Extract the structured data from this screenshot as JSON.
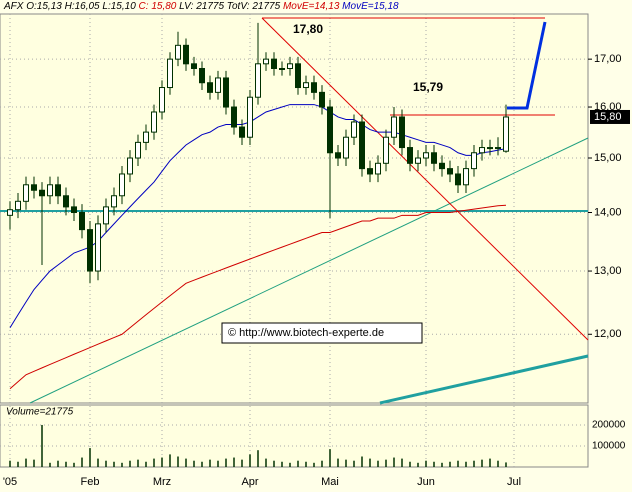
{
  "header": {
    "symbol": "AFX",
    "ohlc": "O:15,13 H:16,05 L:15,10",
    "close": "C: 15,80",
    "volume": "LV: 21775 TotV: 21775",
    "ma1": "MovE=14,13",
    "ma2": "MovE=15,18"
  },
  "annotations": {
    "high_label": "17,80",
    "mid_label": "15,79",
    "copyright": "© http://www.biotech-experte.de"
  },
  "chart_data": {
    "type": "candlestick",
    "log_scale": true,
    "grid": true,
    "categories": [
      "'05",
      null,
      null,
      null,
      null,
      null,
      null,
      null,
      null,
      null,
      "Feb",
      null,
      null,
      null,
      null,
      null,
      null,
      null,
      null,
      "Mrz",
      null,
      null,
      null,
      null,
      null,
      null,
      null,
      null,
      null,
      null,
      "Apr",
      null,
      null,
      null,
      null,
      null,
      null,
      null,
      null,
      null,
      "Mai",
      null,
      null,
      null,
      null,
      null,
      null,
      null,
      null,
      null,
      null,
      null,
      "Jun",
      null,
      null,
      null,
      null,
      null,
      null,
      null,
      null,
      null,
      null,
      "Jul",
      null,
      null,
      null,
      null,
      null,
      null,
      null,
      null,
      null
    ],
    "open": [
      13.95,
      14.05,
      14.2,
      14.5,
      14.4,
      14.3,
      14.5,
      14.3,
      14.1,
      14.0,
      13.7,
      13.0,
      13.8,
      14.1,
      14.3,
      14.7,
      15.0,
      15.3,
      15.5,
      15.9,
      16.4,
      17.0,
      17.3,
      16.9,
      16.8,
      16.5,
      16.3,
      16.6,
      16.0,
      15.6,
      15.4,
      16.2,
      16.9,
      17.0,
      16.8,
      16.8,
      16.9,
      16.4,
      16.5,
      16.3,
      16.0,
      15.1,
      15.0,
      15.4,
      15.7,
      14.8,
      14.7,
      14.9,
      15.4,
      15.8,
      15.2,
      14.9,
      15.0,
      15.1,
      14.9,
      14.8,
      14.7,
      14.5,
      14.8,
      15.1,
      15.2,
      15.2,
      15.13,
      null,
      null,
      null,
      null,
      null,
      null,
      null,
      null,
      null,
      null
    ],
    "high": [
      14.2,
      14.35,
      14.65,
      14.65,
      14.55,
      14.65,
      14.65,
      14.45,
      14.25,
      14.15,
      13.85,
      13.95,
      14.25,
      14.45,
      14.85,
      15.15,
      15.45,
      15.65,
      16.05,
      16.55,
      17.15,
      17.6,
      17.45,
      17.05,
      16.95,
      16.65,
      16.75,
      16.75,
      16.15,
      15.75,
      16.35,
      17.8,
      17.15,
      17.15,
      16.95,
      17.05,
      17.05,
      16.65,
      16.65,
      16.45,
      16.15,
      15.25,
      15.55,
      15.85,
      15.85,
      14.95,
      15.05,
      15.55,
      16.0,
      15.95,
      15.35,
      15.15,
      15.25,
      15.25,
      15.05,
      14.95,
      14.85,
      14.95,
      15.25,
      15.35,
      15.35,
      15.4,
      16.05,
      null,
      null,
      null,
      null,
      null,
      null,
      null,
      null,
      null,
      null
    ],
    "low": [
      13.7,
      13.9,
      14.05,
      14.25,
      13.1,
      14.15,
      14.15,
      13.95,
      13.85,
      13.55,
      12.8,
      12.85,
      13.65,
      13.95,
      14.15,
      14.55,
      14.85,
      15.15,
      15.35,
      15.75,
      16.25,
      16.85,
      16.75,
      16.65,
      16.35,
      16.15,
      16.15,
      15.85,
      15.45,
      15.25,
      15.25,
      16.05,
      16.75,
      16.65,
      16.65,
      16.65,
      16.25,
      16.25,
      16.15,
      15.85,
      13.9,
      14.85,
      14.85,
      15.25,
      14.65,
      14.55,
      14.55,
      14.75,
      15.25,
      15.05,
      14.75,
      14.75,
      14.85,
      14.75,
      14.65,
      14.55,
      14.35,
      14.35,
      14.65,
      14.95,
      15.05,
      15.05,
      15.1,
      null,
      null,
      null,
      null,
      null,
      null,
      null,
      null,
      null,
      null
    ],
    "close": [
      14.05,
      14.2,
      14.5,
      14.4,
      14.3,
      14.5,
      14.3,
      14.1,
      14.0,
      13.7,
      13.0,
      13.8,
      14.1,
      14.3,
      14.7,
      15.0,
      15.3,
      15.5,
      15.9,
      16.4,
      17.0,
      17.3,
      16.9,
      16.8,
      16.5,
      16.3,
      16.6,
      16.0,
      15.6,
      15.4,
      16.2,
      16.9,
      17.0,
      16.8,
      16.8,
      16.9,
      16.4,
      16.5,
      16.3,
      16.0,
      15.1,
      15.0,
      15.4,
      15.7,
      14.8,
      14.7,
      14.9,
      15.4,
      15.8,
      15.2,
      14.9,
      15.0,
      15.1,
      14.9,
      14.8,
      14.7,
      14.5,
      14.8,
      15.1,
      15.2,
      15.2,
      15.2,
      15.8,
      null,
      null,
      null,
      null,
      null,
      null,
      null,
      null,
      null,
      null
    ],
    "series": [
      {
        "name": "MovE=14,13",
        "color": "#d00000",
        "values": [
          11.2,
          11.3,
          11.4,
          11.45,
          11.5,
          11.55,
          11.6,
          11.65,
          11.7,
          11.75,
          11.8,
          11.85,
          11.9,
          11.95,
          12.0,
          12.1,
          12.2,
          12.3,
          12.4,
          12.5,
          12.6,
          12.7,
          12.8,
          12.85,
          12.9,
          12.95,
          13.0,
          13.05,
          13.1,
          13.15,
          13.2,
          13.25,
          13.3,
          13.35,
          13.4,
          13.45,
          13.5,
          13.55,
          13.6,
          13.65,
          13.65,
          13.7,
          13.75,
          13.8,
          13.85,
          13.85,
          13.9,
          13.9,
          13.9,
          13.95,
          13.95,
          13.95,
          14.0,
          14.0,
          14.0,
          14.0,
          14.02,
          14.04,
          14.06,
          14.08,
          14.1,
          14.12,
          14.13,
          null,
          null,
          null,
          null,
          null,
          null,
          null,
          null,
          null,
          null
        ]
      },
      {
        "name": "MovE=15,18",
        "color": "#0000c0",
        "values": [
          12.1,
          12.3,
          12.5,
          12.7,
          12.85,
          13.0,
          13.1,
          13.2,
          13.3,
          13.35,
          13.4,
          13.5,
          13.65,
          13.8,
          13.95,
          14.1,
          14.25,
          14.4,
          14.55,
          14.75,
          14.95,
          15.1,
          15.25,
          15.35,
          15.45,
          15.5,
          15.6,
          15.65,
          15.65,
          15.65,
          15.7,
          15.8,
          15.9,
          15.95,
          16.0,
          16.05,
          16.05,
          16.05,
          16.05,
          16.0,
          15.9,
          15.8,
          15.75,
          15.75,
          15.65,
          15.55,
          15.5,
          15.5,
          15.5,
          15.45,
          15.4,
          15.35,
          15.3,
          15.3,
          15.25,
          15.2,
          15.1,
          15.05,
          15.05,
          15.1,
          15.12,
          15.15,
          15.18,
          null,
          null,
          null,
          null,
          null,
          null,
          null,
          null,
          null,
          null
        ]
      }
    ],
    "ylim": [
      11.0,
      18.0
    ],
    "yticks": [
      {
        "value": 12,
        "label": "12,00"
      },
      {
        "value": 13,
        "label": "13,00"
      },
      {
        "value": 14,
        "label": "14,00"
      },
      {
        "value": 15,
        "label": "15,00"
      },
      {
        "value": 16,
        "label": "16,00"
      },
      {
        "value": 17,
        "label": "17,00"
      }
    ],
    "last_price": {
      "value": 15.8,
      "label": "15,80"
    },
    "volume": {
      "title": "Volume=21775",
      "ylim": [
        0,
        295000
      ],
      "yticks": [
        100000,
        200000
      ],
      "values": [
        30000,
        25000,
        40000,
        35000,
        200000,
        20000,
        30000,
        25000,
        20000,
        45000,
        90000,
        40000,
        30000,
        25000,
        20000,
        30000,
        35000,
        25000,
        40000,
        45000,
        60000,
        50000,
        40000,
        30000,
        25000,
        35000,
        30000,
        40000,
        45000,
        35000,
        60000,
        80000,
        40000,
        30000,
        25000,
        20000,
        30000,
        25000,
        20000,
        30000,
        85000,
        40000,
        35000,
        30000,
        50000,
        40000,
        30000,
        35000,
        45000,
        40000,
        25000,
        20000,
        30000,
        25000,
        20000,
        25000,
        30000,
        25000,
        30000,
        35000,
        40000,
        30000,
        21775,
        null,
        null,
        null,
        null,
        null,
        null,
        null,
        null,
        null,
        null
      ]
    }
  }
}
